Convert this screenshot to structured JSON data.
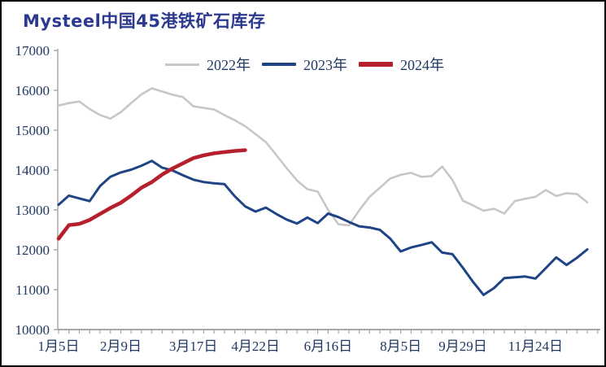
{
  "title": "Mysteel中国45港铁矿石库存",
  "colors": {
    "title": "#2b3990",
    "axis_text": "#1f3864",
    "axis_line": "#a6a6a6",
    "x_axis_line": "#8c8c8c",
    "border": "#000000",
    "background": "#ffffff"
  },
  "legend": {
    "position": "top-center",
    "items": [
      {
        "label": "2022年",
        "swatch": "gray-line",
        "thickness": 3
      },
      {
        "label": "2023年",
        "swatch": "blue-line",
        "thickness": 4
      },
      {
        "label": "2024年",
        "swatch": "red-line",
        "thickness": 6
      }
    ]
  },
  "chart_data": {
    "type": "line",
    "title": "Mysteel中国45港铁矿石库存",
    "xlabel": "",
    "ylabel": "",
    "ylim": [
      10000,
      17000
    ],
    "ytick_interval": 1000,
    "ytick_labels": [
      "17000",
      "16000",
      "15000",
      "14000",
      "13000",
      "12000",
      "11000",
      "10000"
    ],
    "x_axis_labels": [
      "1月5日",
      "2月9日",
      "3月17日",
      "4月22日",
      "6月16日",
      "8月5日",
      "9月29日",
      "11月24日"
    ],
    "x_label_point_index": [
      0,
      6,
      13,
      19,
      26,
      33,
      39,
      46
    ],
    "n_points": 52,
    "grid": false,
    "legend_position": "top-center",
    "series": [
      {
        "name": "2022年",
        "color": "#c7c7c7",
        "width": 2.6,
        "values": [
          15620,
          15680,
          15720,
          15530,
          15380,
          15290,
          15450,
          15680,
          15900,
          16050,
          15970,
          15890,
          15830,
          15600,
          15560,
          15520,
          15380,
          15250,
          15100,
          14900,
          14700,
          14380,
          14050,
          13740,
          13520,
          13460,
          13000,
          12640,
          12610,
          12990,
          13330,
          13560,
          13790,
          13880,
          13930,
          13830,
          13850,
          14090,
          13750,
          13230,
          13110,
          12980,
          13030,
          12910,
          13220,
          13280,
          13330,
          13500,
          13350,
          13420,
          13400,
          13190
        ]
      },
      {
        "name": "2023年",
        "color": "#1e4486",
        "width": 3,
        "values": [
          13130,
          13360,
          13290,
          13220,
          13600,
          13830,
          13940,
          14010,
          14110,
          14230,
          14060,
          13990,
          13870,
          13760,
          13700,
          13670,
          13650,
          13340,
          13090,
          12960,
          13060,
          12900,
          12760,
          12660,
          12810,
          12670,
          12910,
          12820,
          12700,
          12590,
          12560,
          12500,
          12280,
          11960,
          12060,
          12120,
          12190,
          11930,
          11890,
          11550,
          11190,
          10870,
          11040,
          11290,
          11310,
          11330,
          11280,
          11540,
          11810,
          11620,
          11800,
          12010
        ]
      },
      {
        "name": "2024年",
        "color": "#b5202c",
        "width": 4.6,
        "values": [
          12280,
          12620,
          12650,
          12750,
          12900,
          13050,
          13180,
          13360,
          13560,
          13700,
          13890,
          14040,
          14170,
          14300,
          14370,
          14420,
          14450,
          14480,
          14500
        ]
      }
    ]
  }
}
